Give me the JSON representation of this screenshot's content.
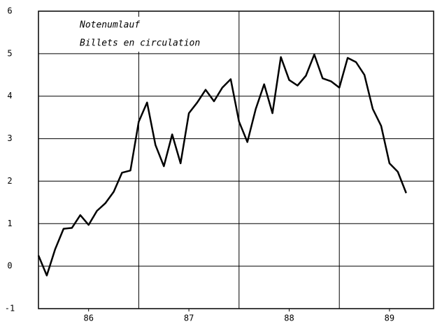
{
  "chart_data": {
    "type": "line",
    "annotations": [
      "Notenumlauf",
      "Billets en circulation"
    ],
    "x": [
      86,
      86.0833,
      86.1667,
      86.25,
      86.3333,
      86.4167,
      86.5,
      86.5833,
      86.6667,
      86.75,
      86.8333,
      86.9167,
      87,
      87.0833,
      87.1667,
      87.25,
      87.3333,
      87.4167,
      87.5,
      87.5833,
      87.6667,
      87.75,
      87.8333,
      87.9167,
      88,
      88.0833,
      88.1667,
      88.25,
      88.3333,
      88.4167,
      88.5,
      88.5833,
      88.6667,
      88.75,
      88.8333,
      88.9167,
      89,
      89.0833,
      89.1667,
      89.25,
      89.3333,
      89.4167,
      89.5,
      89.5833,
      89.6667
    ],
    "series": [
      {
        "color": "#000000",
        "values": [
          0.25,
          -0.22,
          0.4,
          0.88,
          0.9,
          1.2,
          0.97,
          1.3,
          1.48,
          1.75,
          2.2,
          2.25,
          3.4,
          3.85,
          2.85,
          2.35,
          3.1,
          2.42,
          3.6,
          3.85,
          4.15,
          3.88,
          4.2,
          4.4,
          3.4,
          2.92,
          3.7,
          4.28,
          3.6,
          4.92,
          4.38,
          4.25,
          4.48,
          4.98,
          4.42,
          4.35,
          4.2,
          4.9,
          4.8,
          4.5,
          3.7,
          3.3,
          2.42,
          2.22,
          1.72
        ]
      }
    ],
    "xlim": [
      86,
      89.94
    ],
    "xticks": [
      {
        "value": 86.5,
        "label": "86"
      },
      {
        "value": 87.5,
        "label": "87"
      },
      {
        "value": 88.5,
        "label": "88"
      },
      {
        "value": 89.5,
        "label": "89"
      }
    ],
    "xgrid": [
      87,
      88,
      89
    ],
    "ylim": [
      -1,
      6
    ],
    "yticks": [
      -1,
      0,
      1,
      2,
      3,
      4,
      5,
      6
    ],
    "grid": true
  }
}
